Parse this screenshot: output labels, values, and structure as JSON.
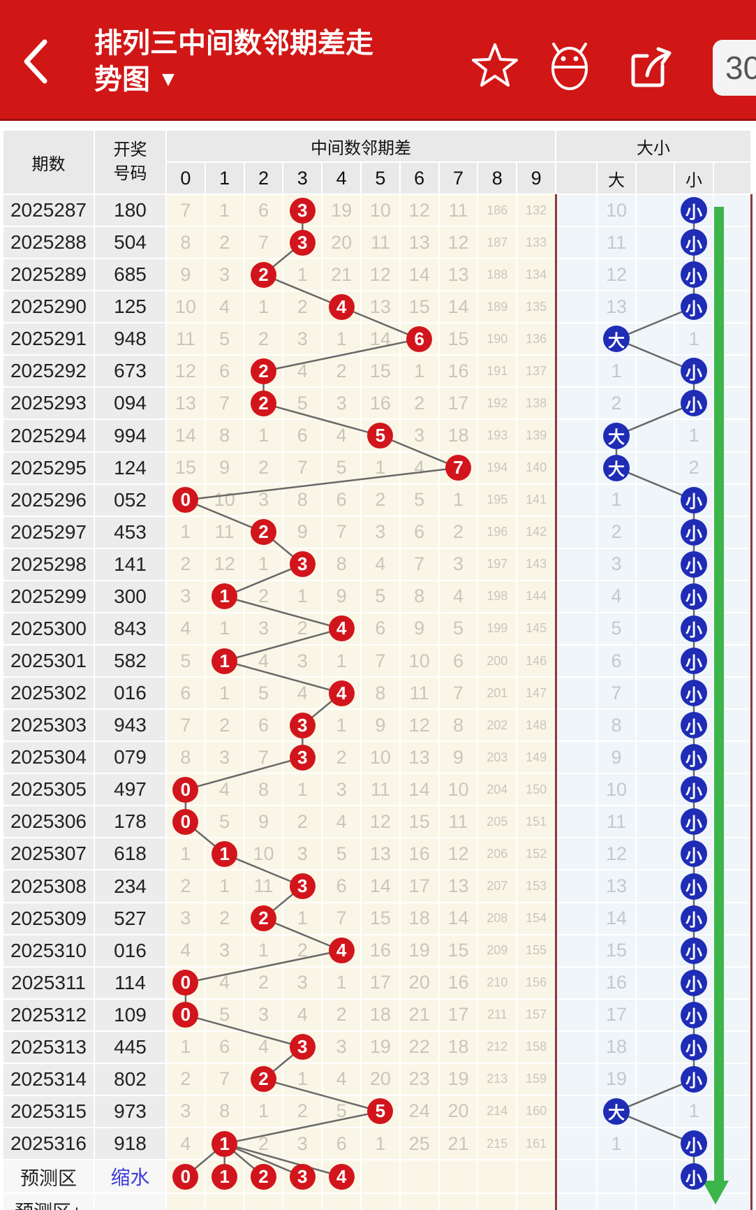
{
  "header": {
    "title_line1": "排列三中间数邻期差走",
    "title_line2": "势图",
    "dropdown": "▼",
    "period_count": "30",
    "icons": [
      "back-icon",
      "star-icon",
      "android-icon",
      "share-icon"
    ]
  },
  "table": {
    "headers": {
      "period": "期数",
      "draw_line1": "开奖",
      "draw_line2": "号码",
      "diff_group": "中间数邻期差",
      "digits": [
        "0",
        "1",
        "2",
        "3",
        "4",
        "5",
        "6",
        "7",
        "8",
        "9"
      ],
      "bigsmall_group": "大小",
      "big": "大",
      "small": "小"
    },
    "big_char": "大",
    "small_char": "小",
    "rows": [
      {
        "p": "2025287",
        "n": "180",
        "m": [
          "7",
          "1",
          "6",
          "3",
          "19",
          "10",
          "12",
          "11",
          "186",
          "132"
        ],
        "h": 3,
        "bs": "small",
        "big": "10",
        "small": ""
      },
      {
        "p": "2025288",
        "n": "504",
        "m": [
          "8",
          "2",
          "7",
          "3",
          "20",
          "11",
          "13",
          "12",
          "187",
          "133"
        ],
        "h": 3,
        "bs": "small",
        "big": "11",
        "small": ""
      },
      {
        "p": "2025289",
        "n": "685",
        "m": [
          "9",
          "3",
          "2",
          "1",
          "21",
          "12",
          "14",
          "13",
          "188",
          "134"
        ],
        "h": 2,
        "bs": "small",
        "big": "12",
        "small": ""
      },
      {
        "p": "2025290",
        "n": "125",
        "m": [
          "10",
          "4",
          "1",
          "2",
          "4",
          "13",
          "15",
          "14",
          "189",
          "135"
        ],
        "h": 4,
        "bs": "small",
        "big": "13",
        "small": ""
      },
      {
        "p": "2025291",
        "n": "948",
        "m": [
          "11",
          "5",
          "2",
          "3",
          "1",
          "14",
          "6",
          "15",
          "190",
          "136"
        ],
        "h": 6,
        "bs": "big",
        "big": "",
        "small": "1"
      },
      {
        "p": "2025292",
        "n": "673",
        "m": [
          "12",
          "6",
          "2",
          "4",
          "2",
          "15",
          "1",
          "16",
          "191",
          "137"
        ],
        "h": 2,
        "bs": "small",
        "big": "1",
        "small": ""
      },
      {
        "p": "2025293",
        "n": "094",
        "m": [
          "13",
          "7",
          "2",
          "5",
          "3",
          "16",
          "2",
          "17",
          "192",
          "138"
        ],
        "h": 2,
        "bs": "small",
        "big": "2",
        "small": ""
      },
      {
        "p": "2025294",
        "n": "994",
        "m": [
          "14",
          "8",
          "1",
          "6",
          "4",
          "5",
          "3",
          "18",
          "193",
          "139"
        ],
        "h": 5,
        "bs": "big",
        "big": "",
        "small": "1"
      },
      {
        "p": "2025295",
        "n": "124",
        "m": [
          "15",
          "9",
          "2",
          "7",
          "5",
          "1",
          "4",
          "7",
          "194",
          "140"
        ],
        "h": 7,
        "bs": "big",
        "big": "",
        "small": "2"
      },
      {
        "p": "2025296",
        "n": "052",
        "m": [
          "0",
          "10",
          "3",
          "8",
          "6",
          "2",
          "5",
          "1",
          "195",
          "141"
        ],
        "h": 0,
        "bs": "small",
        "big": "1",
        "small": ""
      },
      {
        "p": "2025297",
        "n": "453",
        "m": [
          "1",
          "11",
          "2",
          "9",
          "7",
          "3",
          "6",
          "2",
          "196",
          "142"
        ],
        "h": 2,
        "bs": "small",
        "big": "2",
        "small": ""
      },
      {
        "p": "2025298",
        "n": "141",
        "m": [
          "2",
          "12",
          "1",
          "3",
          "8",
          "4",
          "7",
          "3",
          "197",
          "143"
        ],
        "h": 3,
        "bs": "small",
        "big": "3",
        "small": ""
      },
      {
        "p": "2025299",
        "n": "300",
        "m": [
          "3",
          "1",
          "2",
          "1",
          "9",
          "5",
          "8",
          "4",
          "198",
          "144"
        ],
        "h": 1,
        "bs": "small",
        "big": "4",
        "small": ""
      },
      {
        "p": "2025300",
        "n": "843",
        "m": [
          "4",
          "1",
          "3",
          "2",
          "4",
          "6",
          "9",
          "5",
          "199",
          "145"
        ],
        "h": 4,
        "bs": "small",
        "big": "5",
        "small": ""
      },
      {
        "p": "2025301",
        "n": "582",
        "m": [
          "5",
          "1",
          "4",
          "3",
          "1",
          "7",
          "10",
          "6",
          "200",
          "146"
        ],
        "h": 1,
        "bs": "small",
        "big": "6",
        "small": ""
      },
      {
        "p": "2025302",
        "n": "016",
        "m": [
          "6",
          "1",
          "5",
          "4",
          "4",
          "8",
          "11",
          "7",
          "201",
          "147"
        ],
        "h": 4,
        "bs": "small",
        "big": "7",
        "small": ""
      },
      {
        "p": "2025303",
        "n": "943",
        "m": [
          "7",
          "2",
          "6",
          "3",
          "1",
          "9",
          "12",
          "8",
          "202",
          "148"
        ],
        "h": 3,
        "bs": "small",
        "big": "8",
        "small": ""
      },
      {
        "p": "2025304",
        "n": "079",
        "m": [
          "8",
          "3",
          "7",
          "3",
          "2",
          "10",
          "13",
          "9",
          "203",
          "149"
        ],
        "h": 3,
        "bs": "small",
        "big": "9",
        "small": ""
      },
      {
        "p": "2025305",
        "n": "497",
        "m": [
          "0",
          "4",
          "8",
          "1",
          "3",
          "11",
          "14",
          "10",
          "204",
          "150"
        ],
        "h": 0,
        "bs": "small",
        "big": "10",
        "small": ""
      },
      {
        "p": "2025306",
        "n": "178",
        "m": [
          "0",
          "5",
          "9",
          "2",
          "4",
          "12",
          "15",
          "11",
          "205",
          "151"
        ],
        "h": 0,
        "bs": "small",
        "big": "11",
        "small": ""
      },
      {
        "p": "2025307",
        "n": "618",
        "m": [
          "1",
          "1",
          "10",
          "3",
          "5",
          "13",
          "16",
          "12",
          "206",
          "152"
        ],
        "h": 1,
        "bs": "small",
        "big": "12",
        "small": ""
      },
      {
        "p": "2025308",
        "n": "234",
        "m": [
          "2",
          "1",
          "11",
          "3",
          "6",
          "14",
          "17",
          "13",
          "207",
          "153"
        ],
        "h": 3,
        "bs": "small",
        "big": "13",
        "small": ""
      },
      {
        "p": "2025309",
        "n": "527",
        "m": [
          "3",
          "2",
          "2",
          "1",
          "7",
          "15",
          "18",
          "14",
          "208",
          "154"
        ],
        "h": 2,
        "bs": "small",
        "big": "14",
        "small": ""
      },
      {
        "p": "2025310",
        "n": "016",
        "m": [
          "4",
          "3",
          "1",
          "2",
          "4",
          "16",
          "19",
          "15",
          "209",
          "155"
        ],
        "h": 4,
        "bs": "small",
        "big": "15",
        "small": ""
      },
      {
        "p": "2025311",
        "n": "114",
        "m": [
          "0",
          "4",
          "2",
          "3",
          "1",
          "17",
          "20",
          "16",
          "210",
          "156"
        ],
        "h": 0,
        "bs": "small",
        "big": "16",
        "small": ""
      },
      {
        "p": "2025312",
        "n": "109",
        "m": [
          "0",
          "5",
          "3",
          "4",
          "2",
          "18",
          "21",
          "17",
          "211",
          "157"
        ],
        "h": 0,
        "bs": "small",
        "big": "17",
        "small": ""
      },
      {
        "p": "2025313",
        "n": "445",
        "m": [
          "1",
          "6",
          "4",
          "3",
          "3",
          "19",
          "22",
          "18",
          "212",
          "158"
        ],
        "h": 3,
        "bs": "small",
        "big": "18",
        "small": ""
      },
      {
        "p": "2025314",
        "n": "802",
        "m": [
          "2",
          "7",
          "2",
          "1",
          "4",
          "20",
          "23",
          "19",
          "213",
          "159"
        ],
        "h": 2,
        "bs": "small",
        "big": "19",
        "small": ""
      },
      {
        "p": "2025315",
        "n": "973",
        "m": [
          "3",
          "8",
          "1",
          "2",
          "5",
          "5",
          "24",
          "20",
          "214",
          "160"
        ],
        "h": 5,
        "bs": "big",
        "big": "",
        "small": "1"
      },
      {
        "p": "2025316",
        "n": "918",
        "m": [
          "4",
          "1",
          "2",
          "3",
          "6",
          "1",
          "25",
          "21",
          "215",
          "161"
        ],
        "h": 1,
        "bs": "small",
        "big": "1",
        "small": ""
      }
    ],
    "prediction": {
      "label": "预测区",
      "link": "缩水",
      "hits": [
        "0",
        "1",
        "2",
        "3",
        "4"
      ],
      "bs": "small"
    },
    "prediction_plus": {
      "label": "预测区+"
    }
  },
  "colors": {
    "header_red": "#d11616",
    "header_red_dark": "#9e1111",
    "circle_red": "#d2151c",
    "circle_blue": "#1f2cb5",
    "arrow_green": "#3cb54a",
    "link_blue": "#3c3cd6",
    "maroon": "#8c3a3a",
    "connector": "#686868"
  }
}
